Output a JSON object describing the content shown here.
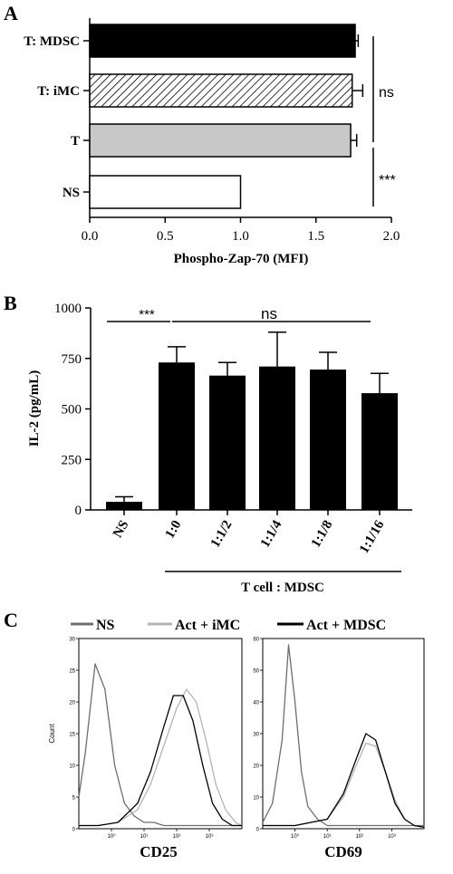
{
  "figure": {
    "panel_labels": [
      "A",
      "B",
      "C"
    ]
  },
  "chart_data": [
    {
      "panel": "A",
      "type": "bar",
      "orientation": "horizontal",
      "categories": [
        "T: MDSC",
        "T: iMC",
        "T",
        "NS"
      ],
      "values": [
        1.76,
        1.74,
        1.73,
        1.0
      ],
      "errors": [
        0.02,
        0.07,
        0.04,
        0.0
      ],
      "fills": [
        "solid-black",
        "hatched",
        "light-gray",
        "white"
      ],
      "xlabel": "Phospho-Zap-70 (MFI)",
      "xlim": [
        0,
        2.0
      ],
      "xticks": [
        "0.0",
        "0.5",
        "1.0",
        "1.5",
        "2.0"
      ],
      "annotations": [
        {
          "text": "ns",
          "spans": [
            "T: MDSC",
            "T"
          ]
        },
        {
          "text": "***",
          "spans": [
            "T",
            "NS"
          ]
        }
      ]
    },
    {
      "panel": "B",
      "type": "bar",
      "categories": [
        "NS",
        "1:0",
        "1:1/2",
        "1:1/4",
        "1:1/8",
        "1:1/16"
      ],
      "values": [
        40,
        730,
        665,
        710,
        695,
        578
      ],
      "errors": [
        25,
        78,
        65,
        170,
        85,
        98
      ],
      "ylabel": "IL-2 (pg/mL)",
      "ylim": [
        0,
        1000
      ],
      "yticks": [
        "0",
        "250",
        "500",
        "750",
        "1000"
      ],
      "group_label": "T cell : MDSC",
      "annotations": [
        {
          "text": "***",
          "spans": [
            "NS",
            "1:0"
          ]
        },
        {
          "text": "ns",
          "spans": [
            "1:0",
            "1:1/16"
          ]
        }
      ]
    },
    {
      "panel": "C",
      "type": "line",
      "legend": [
        "NS",
        "Act + iMC",
        "Act + MDSC"
      ],
      "legend_colors": [
        "#6e6e6e",
        "#b4b4b4",
        "#000000"
      ],
      "subplots": [
        {
          "xlabel": "CD25",
          "ylabel": "Count",
          "yticks": [
            "0",
            "5",
            "10",
            "15",
            "20",
            "25",
            "30"
          ],
          "xticks": [
            "10⁰",
            "10¹",
            "10²",
            "10³"
          ],
          "ylim": [
            0,
            30
          ],
          "series": [
            {
              "name": "NS",
              "x": [
                0,
                0.2,
                0.5,
                0.8,
                1.1,
                1.4,
                1.7,
                2.0,
                2.3,
                2.6,
                2.9,
                3.2,
                3.5,
                3.8,
                4.1,
                4.4,
                4.7,
                5.0
              ],
              "values": [
                5,
                12,
                26,
                22,
                10,
                4,
                2,
                1,
                1,
                0.5,
                0.5,
                0.5,
                0.5,
                0.5,
                0.5,
                0.5,
                0.5,
                0.5
              ]
            },
            {
              "name": "Act + iMC",
              "x": [
                0,
                0.6,
                1.2,
                1.8,
                2.2,
                2.6,
                3.0,
                3.3,
                3.6,
                3.9,
                4.2,
                4.5,
                4.8,
                5.0
              ],
              "values": [
                0.5,
                0.5,
                1,
                3,
                7,
                13,
                19,
                22,
                20,
                14,
                7,
                3,
                1,
                0.5
              ]
            },
            {
              "name": "Act + MDSC",
              "x": [
                0,
                0.6,
                1.2,
                1.8,
                2.2,
                2.6,
                2.9,
                3.2,
                3.5,
                3.8,
                4.1,
                4.4,
                4.7,
                5.0
              ],
              "values": [
                0.5,
                0.5,
                1,
                4,
                9,
                16,
                21,
                21,
                17,
                10,
                4,
                1.5,
                0.5,
                0.5
              ]
            }
          ]
        },
        {
          "xlabel": "CD69",
          "ylabel": "",
          "yticks": [
            "0",
            "10",
            "20",
            "30",
            "40",
            "50",
            "60"
          ],
          "xticks": [
            "10⁰",
            "10¹",
            "10²",
            "10³"
          ],
          "ylim": [
            0,
            60
          ],
          "series": [
            {
              "name": "NS",
              "x": [
                0,
                0.3,
                0.6,
                0.8,
                1.0,
                1.2,
                1.4,
                1.7,
                2.0,
                2.5,
                3.0,
                3.5,
                4.0,
                5.0
              ],
              "values": [
                2,
                8,
                28,
                58,
                40,
                18,
                7,
                3,
                1,
                1,
                1,
                1,
                1,
                1
              ]
            },
            {
              "name": "Act + iMC",
              "x": [
                0,
                1.0,
                2.0,
                2.5,
                2.9,
                3.2,
                3.5,
                3.8,
                4.1,
                4.4,
                4.7,
                5.0
              ],
              "values": [
                1,
                1,
                3,
                10,
                20,
                27,
                26,
                18,
                9,
                3,
                1,
                0.5
              ]
            },
            {
              "name": "Act + MDSC",
              "x": [
                0,
                1.0,
                2.0,
                2.5,
                2.9,
                3.2,
                3.5,
                3.8,
                4.1,
                4.4,
                4.7,
                5.0
              ],
              "values": [
                1,
                1,
                3,
                11,
                22,
                30,
                28,
                18,
                8,
                3,
                1,
                0.5
              ]
            }
          ]
        }
      ]
    }
  ]
}
